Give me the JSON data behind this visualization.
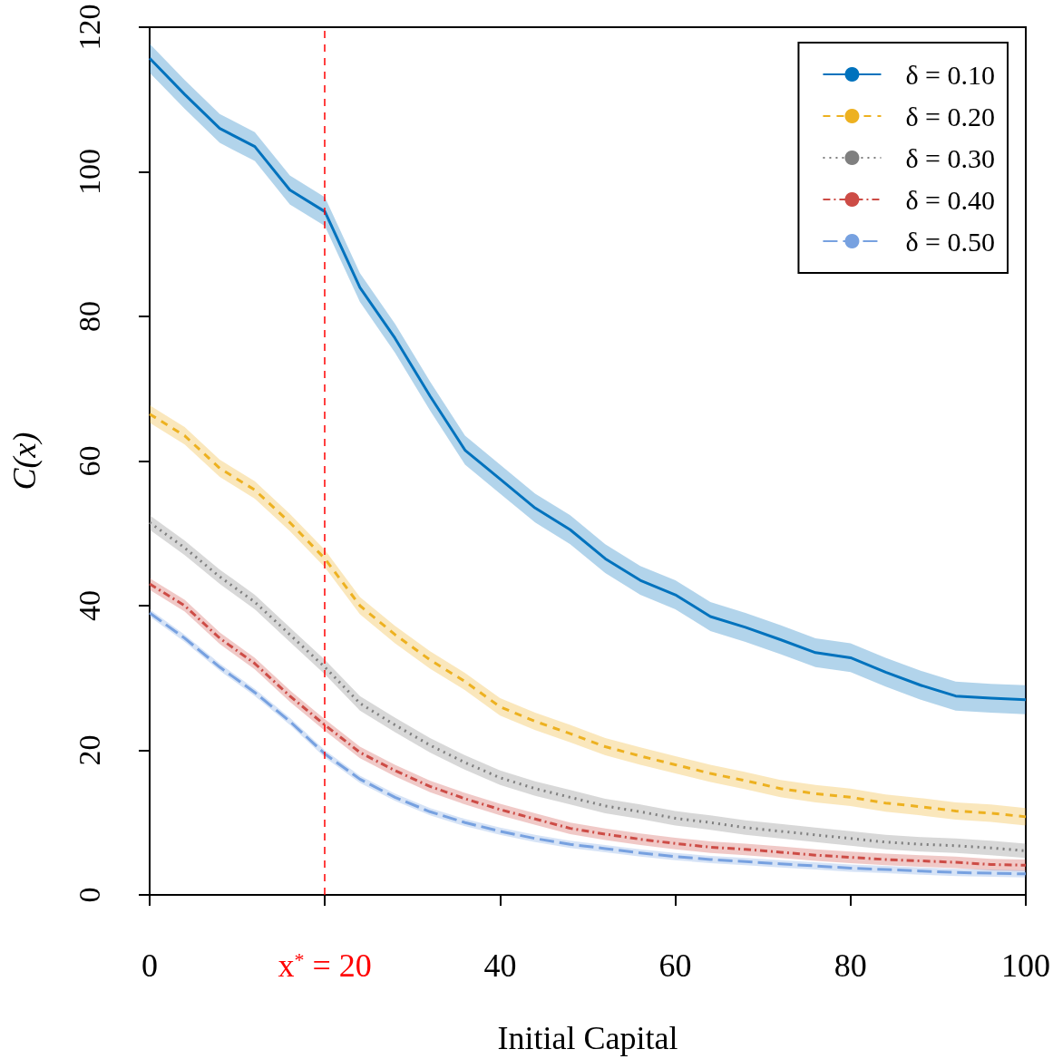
{
  "chart_data": {
    "type": "line",
    "xlabel": "Initial Capital",
    "ylabel": "C(x)",
    "x": [
      0,
      4,
      8,
      12,
      16,
      20,
      24,
      28,
      32,
      36,
      40,
      44,
      48,
      52,
      56,
      60,
      64,
      68,
      72,
      76,
      80,
      84,
      88,
      92,
      96,
      100
    ],
    "xlim": [
      0,
      100
    ],
    "xticks": [
      0,
      {
        "value": 20,
        "label": null
      },
      40,
      60,
      80,
      100
    ],
    "ylim": [
      0,
      120
    ],
    "yticks": [
      0,
      20,
      40,
      60,
      80,
      100,
      120
    ],
    "legend": "top right",
    "ref_lines": [
      {
        "axis": "x",
        "value": 20,
        "label": "x$^{*}$ = 20",
        "color": "#ff0000",
        "line_style": "dashed"
      }
    ],
    "series": [
      {
        "name": "δ = 0.10",
        "color": "#0072bd",
        "line_style": "solid",
        "values": [
          115.7,
          110.7,
          106,
          103.5,
          97.5,
          94.5,
          84,
          77,
          69,
          61.5,
          57.5,
          53.5,
          50.5,
          46.5,
          43.5,
          41.5,
          38.5,
          37,
          35.3,
          33.5,
          32.8,
          30.8,
          29,
          27.5,
          27.2,
          27
        ],
        "lower": [
          113.7,
          108.7,
          104,
          101.5,
          95.5,
          92.5,
          82,
          75,
          67,
          59.5,
          55.5,
          51.5,
          48.5,
          44.5,
          41.5,
          39.5,
          36.5,
          35,
          33.3,
          31.5,
          30.8,
          28.8,
          27,
          25.5,
          25.2,
          25
        ],
        "upper": [
          117.7,
          112.7,
          108,
          105.5,
          99.5,
          96.5,
          86,
          79,
          71,
          63.5,
          59.5,
          55.5,
          52.5,
          48.5,
          45.5,
          43.5,
          40.5,
          39,
          37.3,
          35.5,
          34.8,
          32.8,
          31,
          29.5,
          29.2,
          29
        ]
      },
      {
        "name": "δ = 0.20",
        "color": "#edb120",
        "line_style": "dashed",
        "values": [
          66.5,
          63.5,
          59,
          56,
          51.5,
          46.5,
          40,
          36,
          32.5,
          29.5,
          26,
          24,
          22.3,
          20.5,
          19.2,
          18,
          16.8,
          15.8,
          14.7,
          14,
          13.5,
          12.7,
          12.2,
          11.6,
          11.3,
          10.8
        ],
        "lower": [
          65.3,
          62.3,
          57.8,
          54.8,
          50.3,
          45.3,
          38.8,
          34.8,
          31.3,
          28.3,
          24.8,
          22.8,
          21.1,
          19.3,
          18,
          16.8,
          15.6,
          14.6,
          13.5,
          12.8,
          12.3,
          11.5,
          11,
          10.4,
          10.1,
          9.6
        ],
        "upper": [
          67.7,
          64.7,
          60.2,
          57.2,
          52.7,
          47.7,
          41.2,
          37.2,
          33.7,
          30.7,
          27.2,
          25.2,
          23.5,
          21.7,
          20.4,
          19.2,
          18,
          17,
          15.9,
          15.2,
          14.7,
          13.9,
          13.4,
          12.8,
          12.5,
          12
        ]
      },
      {
        "name": "δ = 0.30",
        "color": "#7f7f7f",
        "line_style": "dotted",
        "values": [
          51.5,
          48,
          44,
          40.5,
          36,
          31.5,
          26.5,
          23.5,
          20.7,
          18.3,
          16.2,
          14.7,
          13.5,
          12.3,
          11.5,
          10.6,
          10,
          9.3,
          8.8,
          8.3,
          7.8,
          7.3,
          7,
          6.8,
          6.5,
          6.1
        ],
        "lower": [
          50.5,
          47,
          43,
          39.5,
          35,
          30.5,
          25.5,
          22.5,
          19.7,
          17.3,
          15.2,
          13.7,
          12.5,
          11.3,
          10.5,
          9.6,
          9,
          8.3,
          7.8,
          7.3,
          6.8,
          6.3,
          6,
          5.8,
          5.5,
          5.1
        ],
        "upper": [
          52.5,
          49,
          45,
          41.5,
          37,
          32.5,
          27.5,
          24.5,
          21.7,
          19.3,
          17.2,
          15.7,
          14.5,
          13.3,
          12.5,
          11.6,
          11,
          10.3,
          9.8,
          9.3,
          8.8,
          8.3,
          8,
          7.8,
          7.5,
          7.1
        ]
      },
      {
        "name": "δ = 0.40",
        "color": "#cd4c46",
        "line_style": "dashdot",
        "values": [
          43,
          40,
          35.5,
          32,
          27.5,
          23.5,
          19.7,
          17.2,
          15,
          13.3,
          11.8,
          10.5,
          9.2,
          8.4,
          7.7,
          7.1,
          6.6,
          6.3,
          5.9,
          5.5,
          5.2,
          4.9,
          4.7,
          4.5,
          4.2,
          4.1
        ],
        "lower": [
          42.2,
          39.2,
          34.7,
          31.2,
          26.7,
          22.7,
          18.9,
          16.4,
          14.2,
          12.5,
          11,
          9.7,
          8.4,
          7.6,
          6.9,
          6.3,
          5.8,
          5.5,
          5.1,
          4.7,
          4.4,
          4.1,
          3.9,
          3.7,
          3.4,
          3.3
        ],
        "upper": [
          43.8,
          40.8,
          36.3,
          32.8,
          28.3,
          24.3,
          20.5,
          18,
          15.8,
          14.1,
          12.6,
          11.3,
          10,
          9.2,
          8.5,
          7.9,
          7.4,
          7.1,
          6.7,
          6.3,
          6,
          5.7,
          5.5,
          5.3,
          5,
          4.9
        ]
      },
      {
        "name": "δ = 0.50",
        "color": "#77a1e0",
        "line_style": "longdash",
        "values": [
          39,
          35.5,
          31.5,
          28,
          24,
          19.5,
          16,
          13.5,
          11.5,
          10,
          8.8,
          7.8,
          7,
          6.4,
          5.8,
          5.3,
          4.9,
          4.6,
          4.3,
          4,
          3.7,
          3.5,
          3.3,
          3.1,
          3,
          2.9
        ],
        "lower": [
          38.5,
          35,
          31,
          27.5,
          23.5,
          19,
          15.5,
          13,
          11,
          9.5,
          8.3,
          7.3,
          6.5,
          5.9,
          5.3,
          4.8,
          4.4,
          4.1,
          3.8,
          3.5,
          3.2,
          3,
          2.8,
          2.6,
          2.5,
          2.4
        ],
        "upper": [
          39.5,
          36,
          32,
          28.5,
          24.5,
          20,
          16.5,
          14,
          12,
          10.5,
          9.3,
          8.3,
          7.5,
          6.9,
          6.3,
          5.8,
          5.4,
          5.1,
          4.8,
          4.5,
          4.2,
          4,
          3.8,
          3.6,
          3.5,
          3.4
        ]
      }
    ]
  }
}
